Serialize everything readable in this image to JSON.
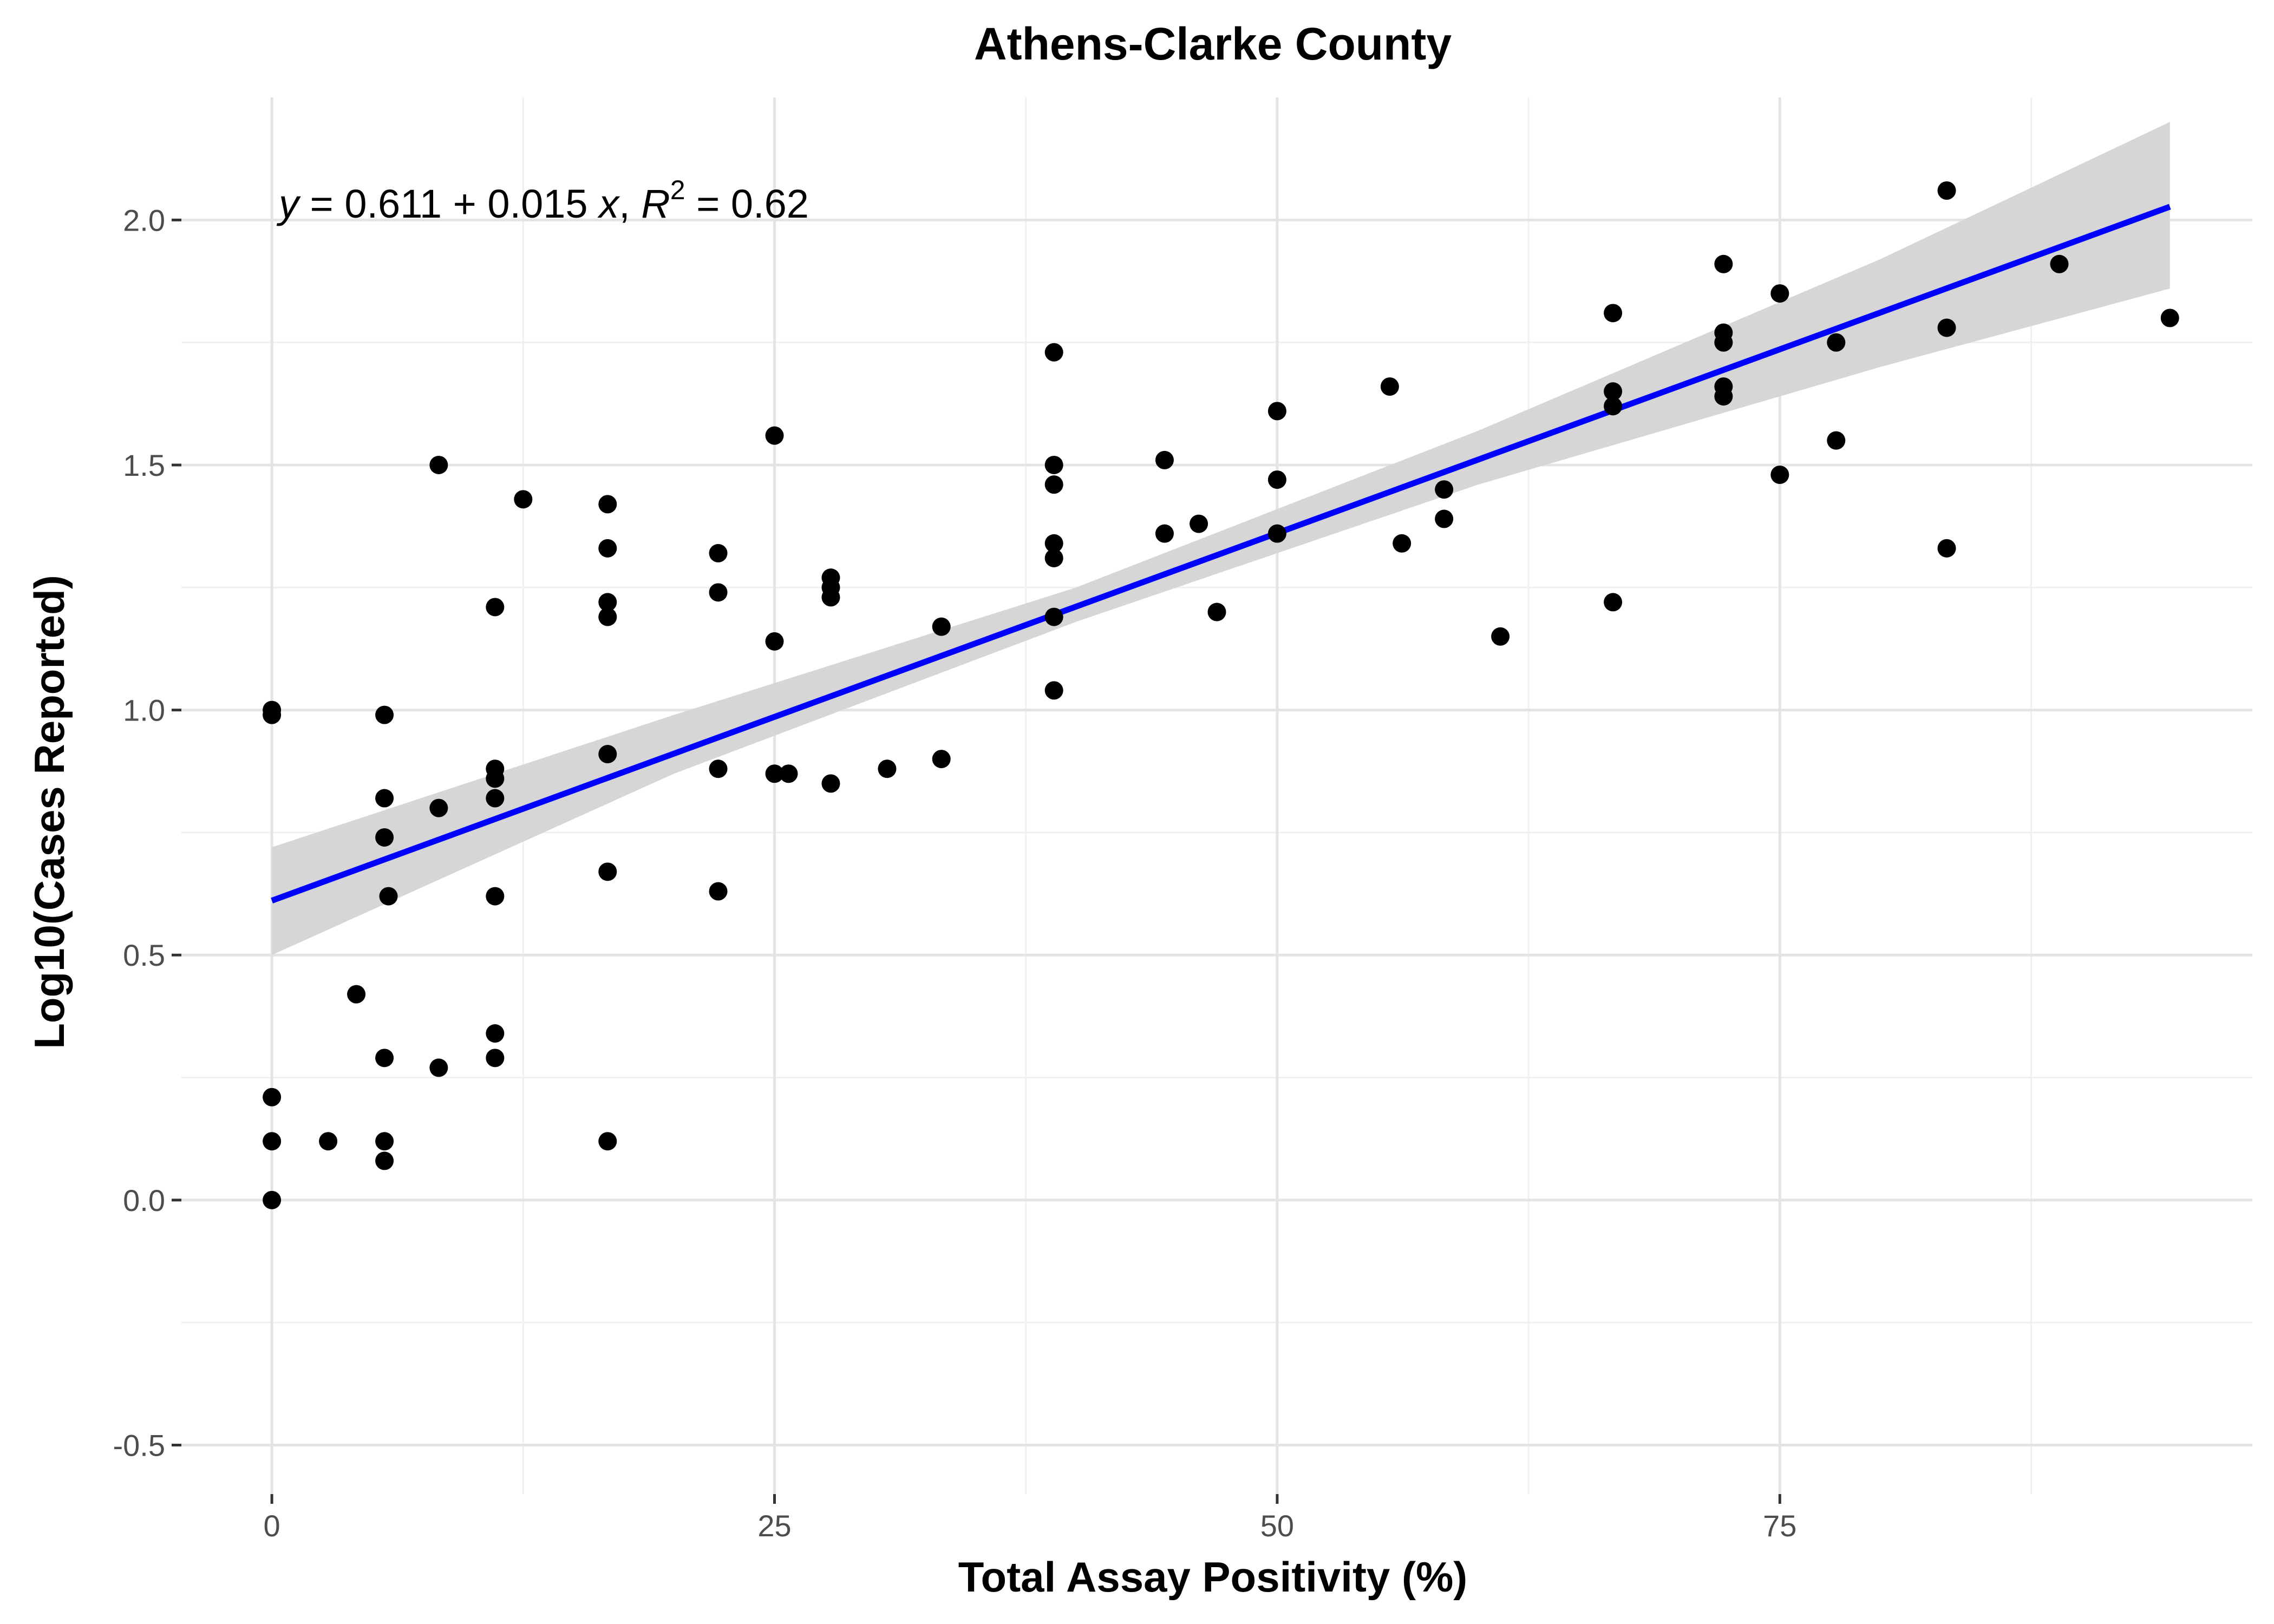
{
  "chart_data": {
    "type": "scatter",
    "title": "Athens-Clarke County",
    "xlabel": "Total Assay Positivity (%)",
    "ylabel": "Log10(Cases Reported)",
    "xlim": [
      -4.5,
      98.5
    ],
    "ylim": [
      -0.6,
      2.25
    ],
    "x_ticks": [
      0,
      25,
      50,
      75
    ],
    "x_tick_labels": [
      "0",
      "25",
      "50",
      "75"
    ],
    "y_ticks": [
      -0.5,
      0.0,
      0.5,
      1.0,
      1.5,
      2.0
    ],
    "y_tick_labels": [
      "-0.5",
      "0.0",
      "0.5",
      "1.0",
      "1.5",
      "2.0"
    ],
    "grid": true,
    "point_color": "#000000",
    "points": [
      [
        0,
        1.0
      ],
      [
        0,
        0.99
      ],
      [
        0,
        0.21
      ],
      [
        0,
        0.12
      ],
      [
        0,
        0.0
      ],
      [
        2.8,
        0.12
      ],
      [
        4.2,
        0.42
      ],
      [
        5.6,
        0.99
      ],
      [
        5.6,
        0.82
      ],
      [
        5.6,
        0.74
      ],
      [
        5.8,
        0.62
      ],
      [
        5.6,
        0.29
      ],
      [
        5.6,
        0.12
      ],
      [
        5.6,
        0.08
      ],
      [
        8.3,
        1.5
      ],
      [
        8.3,
        0.8
      ],
      [
        8.3,
        0.27
      ],
      [
        11.1,
        1.21
      ],
      [
        11.1,
        0.88
      ],
      [
        11.1,
        0.86
      ],
      [
        11.1,
        0.82
      ],
      [
        11.1,
        0.62
      ],
      [
        11.1,
        0.34
      ],
      [
        11.1,
        0.29
      ],
      [
        12.5,
        1.43
      ],
      [
        16.7,
        1.42
      ],
      [
        16.7,
        1.33
      ],
      [
        16.7,
        1.22
      ],
      [
        16.7,
        1.19
      ],
      [
        16.7,
        0.91
      ],
      [
        16.7,
        0.67
      ],
      [
        16.7,
        0.12
      ],
      [
        22.2,
        1.32
      ],
      [
        22.2,
        1.24
      ],
      [
        22.2,
        0.88
      ],
      [
        22.2,
        0.63
      ],
      [
        25.0,
        1.56
      ],
      [
        25.0,
        1.14
      ],
      [
        25.0,
        0.87
      ],
      [
        25.7,
        0.87
      ],
      [
        27.8,
        1.27
      ],
      [
        27.8,
        1.25
      ],
      [
        27.8,
        1.23
      ],
      [
        27.8,
        0.85
      ],
      [
        30.6,
        0.88
      ],
      [
        33.3,
        1.17
      ],
      [
        33.3,
        0.9
      ],
      [
        38.9,
        1.73
      ],
      [
        38.9,
        1.5
      ],
      [
        38.9,
        1.46
      ],
      [
        38.9,
        1.34
      ],
      [
        38.9,
        1.31
      ],
      [
        38.9,
        1.19
      ],
      [
        38.9,
        1.04
      ],
      [
        44.4,
        1.51
      ],
      [
        44.4,
        1.36
      ],
      [
        46.1,
        1.38
      ],
      [
        47.0,
        1.2
      ],
      [
        50.0,
        1.61
      ],
      [
        50.0,
        1.47
      ],
      [
        50.0,
        1.36
      ],
      [
        55.6,
        1.66
      ],
      [
        56.2,
        1.34
      ],
      [
        58.3,
        1.45
      ],
      [
        58.3,
        1.39
      ],
      [
        61.1,
        1.15
      ],
      [
        66.7,
        1.81
      ],
      [
        66.7,
        1.65
      ],
      [
        66.7,
        1.62
      ],
      [
        66.7,
        1.22
      ],
      [
        72.2,
        1.91
      ],
      [
        72.2,
        1.77
      ],
      [
        72.2,
        1.75
      ],
      [
        72.2,
        1.66
      ],
      [
        72.2,
        1.64
      ],
      [
        75.0,
        1.85
      ],
      [
        75.0,
        1.48
      ],
      [
        77.8,
        1.75
      ],
      [
        77.8,
        1.55
      ],
      [
        83.3,
        2.06
      ],
      [
        83.3,
        1.78
      ],
      [
        83.3,
        1.33
      ],
      [
        88.9,
        1.91
      ],
      [
        94.4,
        1.8
      ]
    ],
    "fit": {
      "intercept": 0.611,
      "slope": 0.015,
      "x_range": [
        0,
        94.4
      ],
      "line_color": "#0000ff",
      "band_color": "#d6d6d6",
      "band": [
        [
          0,
          0.5,
          0.72
        ],
        [
          20,
          0.87,
          0.99
        ],
        [
          40,
          1.18,
          1.25
        ],
        [
          60,
          1.46,
          1.57
        ],
        [
          80,
          1.7,
          1.92
        ],
        [
          94.4,
          1.86,
          2.2
        ]
      ]
    },
    "annotation": {
      "y_var": "y",
      "equals_1": " = 0.611",
      "plus": " + ",
      "coef": "0.015 ",
      "x_var": "x",
      "comma": ", ",
      "r_var": "R",
      "r_sup": "2",
      "r_val": " = 0.62"
    }
  }
}
